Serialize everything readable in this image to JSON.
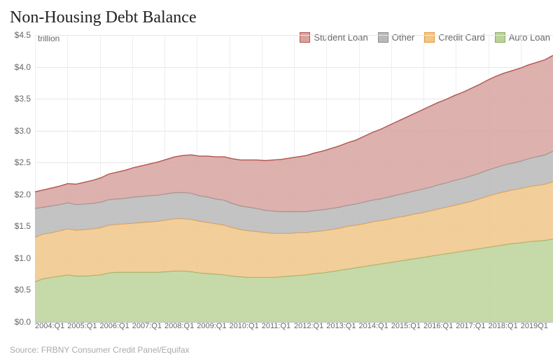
{
  "title": "Non-Housing Debt Balance",
  "unit_label": "trillion",
  "source": "Source: FRBNY Consumer Credit Panel/Equifax",
  "chart": {
    "type": "area-stacked",
    "background_color": "#ffffff",
    "grid_color": "#e7e7e7",
    "axis_color": "#bcbcbc",
    "title_fontsize": 24,
    "title_color": "#222222",
    "label_fontsize": 12,
    "label_color": "#666666",
    "legend_fontsize": 13,
    "source_fontsize": 12,
    "source_color": "#aaaaaa",
    "ylim": [
      0.0,
      4.5
    ],
    "ytick_step": 0.5,
    "ytick_prefix": "$",
    "ytick_decimals": 1,
    "x_labels": [
      "2004:Q1",
      "2005:Q1",
      "2006:Q1",
      "2007:Q1",
      "2008:Q1",
      "2009:Q1",
      "2010:Q1",
      "2011:Q1",
      "2012:Q1",
      "2013:Q1",
      "2014:Q1",
      "2015:Q1",
      "2016:Q1",
      "2017:Q1",
      "2018:Q1",
      "2019Q1"
    ],
    "n_points": 64,
    "series": [
      {
        "name": "Auto Loan",
        "fill": "#bcd29a",
        "stroke": "#8fad5f",
        "values": [
          0.63,
          0.68,
          0.7,
          0.72,
          0.74,
          0.72,
          0.72,
          0.73,
          0.74,
          0.77,
          0.78,
          0.78,
          0.78,
          0.78,
          0.78,
          0.78,
          0.79,
          0.8,
          0.8,
          0.79,
          0.77,
          0.76,
          0.75,
          0.74,
          0.72,
          0.71,
          0.7,
          0.7,
          0.7,
          0.7,
          0.71,
          0.72,
          0.73,
          0.74,
          0.76,
          0.77,
          0.79,
          0.81,
          0.83,
          0.85,
          0.87,
          0.89,
          0.91,
          0.93,
          0.95,
          0.97,
          0.99,
          1.01,
          1.03,
          1.05,
          1.07,
          1.09,
          1.11,
          1.13,
          1.15,
          1.17,
          1.19,
          1.21,
          1.23,
          1.24,
          1.26,
          1.27,
          1.28,
          1.3
        ]
      },
      {
        "name": "Credit Card",
        "fill": "#f0c689",
        "stroke": "#e69b3a",
        "values": [
          0.7,
          0.7,
          0.7,
          0.71,
          0.72,
          0.72,
          0.73,
          0.73,
          0.74,
          0.75,
          0.75,
          0.76,
          0.77,
          0.78,
          0.79,
          0.8,
          0.81,
          0.82,
          0.82,
          0.82,
          0.81,
          0.8,
          0.79,
          0.78,
          0.76,
          0.74,
          0.73,
          0.72,
          0.7,
          0.69,
          0.68,
          0.67,
          0.67,
          0.66,
          0.66,
          0.66,
          0.66,
          0.66,
          0.67,
          0.67,
          0.67,
          0.68,
          0.68,
          0.68,
          0.69,
          0.69,
          0.7,
          0.7,
          0.71,
          0.72,
          0.73,
          0.74,
          0.75,
          0.76,
          0.78,
          0.8,
          0.82,
          0.83,
          0.84,
          0.85,
          0.86,
          0.87,
          0.88,
          0.9
        ]
      },
      {
        "name": "Other",
        "fill": "#b9b9b9",
        "stroke": "#8f8f8f",
        "values": [
          0.45,
          0.42,
          0.42,
          0.41,
          0.41,
          0.4,
          0.4,
          0.4,
          0.4,
          0.4,
          0.4,
          0.4,
          0.41,
          0.41,
          0.41,
          0.41,
          0.41,
          0.41,
          0.41,
          0.41,
          0.4,
          0.4,
          0.39,
          0.39,
          0.38,
          0.37,
          0.37,
          0.36,
          0.35,
          0.35,
          0.34,
          0.34,
          0.33,
          0.33,
          0.33,
          0.33,
          0.33,
          0.33,
          0.33,
          0.33,
          0.34,
          0.34,
          0.34,
          0.35,
          0.35,
          0.36,
          0.36,
          0.37,
          0.37,
          0.38,
          0.38,
          0.39,
          0.39,
          0.4,
          0.4,
          0.41,
          0.41,
          0.42,
          0.42,
          0.43,
          0.44,
          0.45,
          0.46,
          0.48
        ]
      },
      {
        "name": "Student Loan",
        "fill": "#d6a3a0",
        "stroke": "#b3534d",
        "values": [
          0.26,
          0.27,
          0.28,
          0.29,
          0.3,
          0.32,
          0.34,
          0.36,
          0.38,
          0.4,
          0.42,
          0.44,
          0.46,
          0.48,
          0.5,
          0.52,
          0.54,
          0.56,
          0.58,
          0.6,
          0.62,
          0.64,
          0.66,
          0.68,
          0.7,
          0.72,
          0.74,
          0.76,
          0.78,
          0.8,
          0.82,
          0.84,
          0.86,
          0.88,
          0.9,
          0.92,
          0.94,
          0.96,
          0.98,
          1.0,
          1.03,
          1.06,
          1.09,
          1.12,
          1.15,
          1.18,
          1.21,
          1.24,
          1.27,
          1.29,
          1.31,
          1.33,
          1.35,
          1.37,
          1.39,
          1.41,
          1.43,
          1.44,
          1.45,
          1.46,
          1.47,
          1.48,
          1.49,
          1.5
        ]
      }
    ],
    "legend_order": [
      "Student Loan",
      "Other",
      "Credit Card",
      "Auto Loan"
    ]
  }
}
